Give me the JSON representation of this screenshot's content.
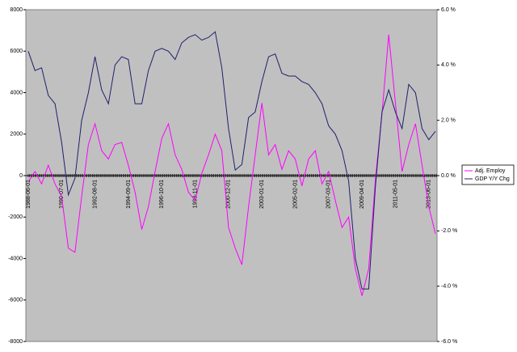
{
  "chart_data": {
    "type": "line",
    "categories": [
      "1988-06-01",
      null,
      null,
      null,
      null,
      "1990-07-01",
      null,
      null,
      null,
      null,
      "1992-08-01",
      null,
      null,
      null,
      null,
      "1994-09-01",
      null,
      null,
      null,
      null,
      "1996-10-01",
      null,
      null,
      null,
      null,
      "1998-11-01",
      null,
      null,
      null,
      null,
      "2000-12-01",
      null,
      null,
      null,
      null,
      "2003-01-01",
      null,
      null,
      null,
      null,
      "2005-02-01",
      null,
      null,
      null,
      null,
      "2007-03-01",
      null,
      null,
      null,
      null,
      "2009-04-01",
      null,
      null,
      null,
      null,
      "2011-05-01",
      null,
      null,
      null,
      null,
      "2013-06-01",
      null
    ],
    "series": [
      {
        "name": "Adj. Employ",
        "color": "#ff00ff",
        "axis": "y",
        "values": [
          -300,
          200,
          -400,
          500,
          -400,
          -1000,
          -3500,
          -3700,
          -1000,
          1500,
          2500,
          1200,
          800,
          1500,
          1600,
          500,
          -800,
          -2600,
          -1500,
          200,
          1800,
          2500,
          1000,
          300,
          -800,
          -1200,
          100,
          1000,
          2000,
          1200,
          -2500,
          -3500,
          -4300,
          -1500,
          1000,
          3500,
          1000,
          1500,
          300,
          1200,
          800,
          -500,
          800,
          1200,
          -400,
          200,
          -1200,
          -2500,
          -2000,
          -4500,
          -5800,
          -4500,
          -200,
          3000,
          6800,
          3500,
          200,
          1500,
          2500,
          500,
          -1500,
          -2800
        ]
      },
      {
        "name": "GDP Y/Y Chg",
        "color": "#1f1f6e",
        "axis": "y2",
        "values": [
          4.5,
          3.8,
          3.9,
          2.9,
          2.6,
          1.2,
          -0.7,
          -0.1,
          2.0,
          3.0,
          4.3,
          3.1,
          2.6,
          4.0,
          4.3,
          4.2,
          2.6,
          2.6,
          3.8,
          4.5,
          4.6,
          4.5,
          4.2,
          4.8,
          5.0,
          5.1,
          4.9,
          5.0,
          5.2,
          3.9,
          1.7,
          0.2,
          0.4,
          2.1,
          2.3,
          3.4,
          4.3,
          4.4,
          3.7,
          3.6,
          3.6,
          3.4,
          3.3,
          3.0,
          2.6,
          1.8,
          1.5,
          0.9,
          -0.2,
          -3.0,
          -4.1,
          -4.1,
          -0.4,
          2.3,
          3.1,
          2.3,
          1.7,
          3.3,
          3.0,
          1.7,
          1.3,
          1.6
        ]
      }
    ],
    "ylim": [
      -8000,
      8000
    ],
    "yticks": [
      -8000,
      -6000,
      -4000,
      -2000,
      0,
      2000,
      4000,
      6000,
      8000
    ],
    "y2lim": [
      -6,
      6
    ],
    "y2ticks": [
      {
        "value": -6,
        "label": "-6.0 %"
      },
      {
        "value": -4,
        "label": "-4.0 %"
      },
      {
        "value": -2,
        "label": "-2.0 %"
      },
      {
        "value": 0,
        "label": "0.0 %"
      },
      {
        "value": 2,
        "label": "2.0 %"
      },
      {
        "value": 4,
        "label": "4.0 %"
      },
      {
        "value": 6,
        "label": "6.0 %"
      }
    ],
    "legend": "right",
    "background": "#c0c0c0"
  }
}
